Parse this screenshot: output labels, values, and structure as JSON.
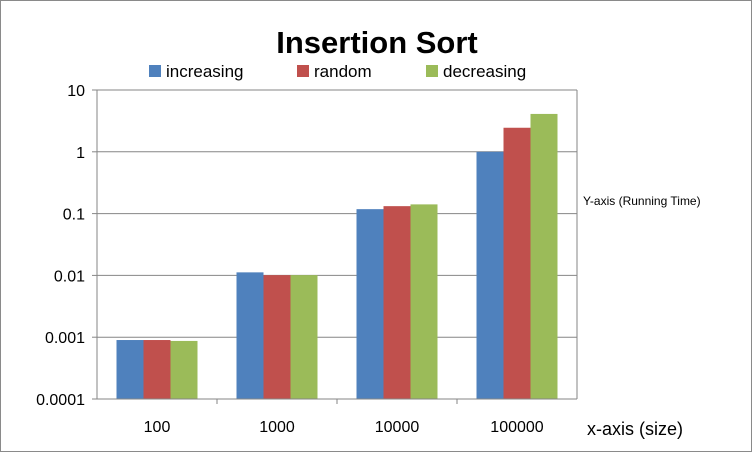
{
  "chart_data": {
    "type": "bar",
    "title": "Insertion Sort",
    "xlabel": "x-axis (size)",
    "ylabel": "Y-axis (Running Time)",
    "yscale": "log",
    "ylim": [
      0.0001,
      10
    ],
    "yticks": [
      "10",
      "1",
      "0.1",
      "0.01",
      "0.001",
      "0.0001"
    ],
    "ytick_values": [
      10,
      1,
      0.1,
      0.01,
      0.001,
      0.0001
    ],
    "categories": [
      "100",
      "1000",
      "10000",
      "100000"
    ],
    "series": [
      {
        "name": "increasing",
        "color": "#4F81BD",
        "values": [
          0.0009,
          0.0112,
          0.118,
          1.0
        ]
      },
      {
        "name": "random",
        "color": "#C0504D",
        "values": [
          0.0009,
          0.0101,
          0.132,
          2.45
        ]
      },
      {
        "name": "decreasing",
        "color": "#9BBB59",
        "values": [
          0.00087,
          0.0101,
          0.141,
          4.1
        ]
      }
    ],
    "grid": true,
    "legend_position": "top"
  }
}
